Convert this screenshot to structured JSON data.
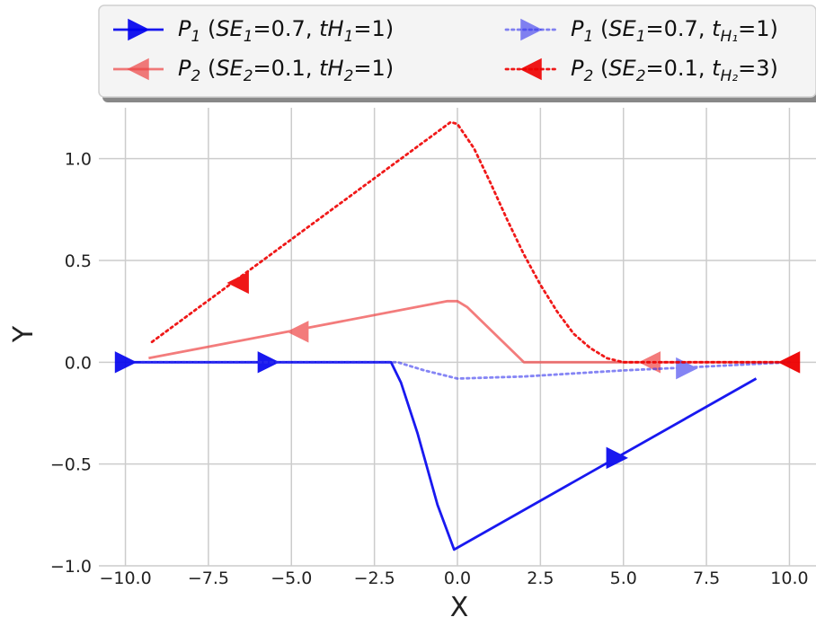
{
  "chart_data": {
    "type": "line",
    "xlabel": "X",
    "ylabel": "Y",
    "xlim": [
      -10.8,
      10.8
    ],
    "ylim": [
      -1.0,
      1.25
    ],
    "xticks": [
      -10.0,
      -7.5,
      -5.0,
      -2.5,
      0.0,
      2.5,
      5.0,
      7.5,
      10.0
    ],
    "xtick_labels": [
      "−10.0",
      "−7.5",
      "−5.0",
      "−2.5",
      "0.0",
      "2.5",
      "5.0",
      "7.5",
      "10.0"
    ],
    "yticks": [
      -1.0,
      -0.5,
      0.0,
      0.5,
      1.0
    ],
    "ytick_labels": [
      "−1.0",
      "−0.5",
      "0.0",
      "0.5",
      "1.0"
    ],
    "grid": true,
    "legend_position": "top",
    "series": [
      {
        "name": "P1 (SE1=0.7, tH1=1)",
        "legend": {
          "main": "P",
          "sub1": "1",
          "mid1": " (",
          "mid2": "SE",
          "sub2": "1",
          "mid3": "=0.7, ",
          "mid4": "tH",
          "sub3": "1",
          "tail": "=1)"
        },
        "color": "#0000ee",
        "opacity": 0.9,
        "dash": "solid",
        "marker": "triangle-right",
        "points": [
          [
            -10.0,
            0.0
          ],
          [
            -2.0,
            0.0
          ],
          [
            -1.7,
            -0.1
          ],
          [
            -1.2,
            -0.35
          ],
          [
            -0.6,
            -0.7
          ],
          [
            -0.1,
            -0.92
          ],
          [
            9.0,
            -0.08
          ]
        ],
        "markers": [
          [
            -10.0,
            0.0
          ],
          [
            -5.7,
            0.0
          ],
          [
            4.8,
            -0.47
          ]
        ]
      },
      {
        "name": "P2 (SE2=0.1, tH2=1)",
        "legend": {
          "main": "P",
          "sub1": "2",
          "mid1": " (",
          "mid2": "SE",
          "sub2": "2",
          "mid3": "=0.1, ",
          "mid4": "tH",
          "sub3": "2",
          "tail": "=1)"
        },
        "color": "#ee4444",
        "opacity": 0.7,
        "dash": "solid",
        "marker": "triangle-left",
        "points": [
          [
            -9.3,
            0.02
          ],
          [
            -0.3,
            0.3
          ],
          [
            0.0,
            0.3
          ],
          [
            0.3,
            0.27
          ],
          [
            2.0,
            0.0
          ],
          [
            10.0,
            0.0
          ]
        ],
        "markers": [
          [
            -4.8,
            0.15
          ],
          [
            5.8,
            0.0
          ],
          [
            10.0,
            0.0
          ]
        ]
      },
      {
        "name": "P1 (SE1=0.7, t_H1=1)",
        "legend": {
          "main": "P",
          "sub1": "1",
          "mid1": " (",
          "mid2": "SE",
          "sub2": "1",
          "mid3": "=0.7, ",
          "mid4": "t",
          "sub3": "H₁",
          "tail": "=1)"
        },
        "color": "#3333ee",
        "opacity": 0.6,
        "dash": "dotted",
        "marker": "triangle-right",
        "points": [
          [
            -9.5,
            0.0
          ],
          [
            -1.8,
            0.0
          ],
          [
            -1.0,
            -0.04
          ],
          [
            0.0,
            -0.08
          ],
          [
            2.0,
            -0.07
          ],
          [
            5.0,
            -0.04
          ],
          [
            7.0,
            -0.025
          ],
          [
            10.0,
            0.0
          ]
        ],
        "markers": [
          [
            6.9,
            -0.03
          ]
        ]
      },
      {
        "name": "P2 (SE2=0.1, t_H2=3)",
        "legend": {
          "main": "P",
          "sub1": "2",
          "mid1": " (",
          "mid2": "SE",
          "sub2": "2",
          "mid3": "=0.1, ",
          "mid4": "t",
          "sub3": "H₂",
          "tail": "=3)"
        },
        "color": "#ee0000",
        "opacity": 0.9,
        "dash": "dotted",
        "marker": "triangle-left",
        "points": [
          [
            -9.2,
            0.1
          ],
          [
            -0.2,
            1.18
          ],
          [
            0.0,
            1.17
          ],
          [
            0.5,
            1.05
          ],
          [
            1.0,
            0.88
          ],
          [
            1.5,
            0.7
          ],
          [
            2.0,
            0.53
          ],
          [
            2.5,
            0.38
          ],
          [
            3.0,
            0.25
          ],
          [
            3.5,
            0.14
          ],
          [
            4.0,
            0.07
          ],
          [
            4.5,
            0.02
          ],
          [
            5.0,
            0.0
          ],
          [
            10.0,
            0.0
          ]
        ],
        "markers": [
          [
            -6.6,
            0.39
          ],
          [
            10.0,
            0.0
          ]
        ]
      }
    ]
  }
}
